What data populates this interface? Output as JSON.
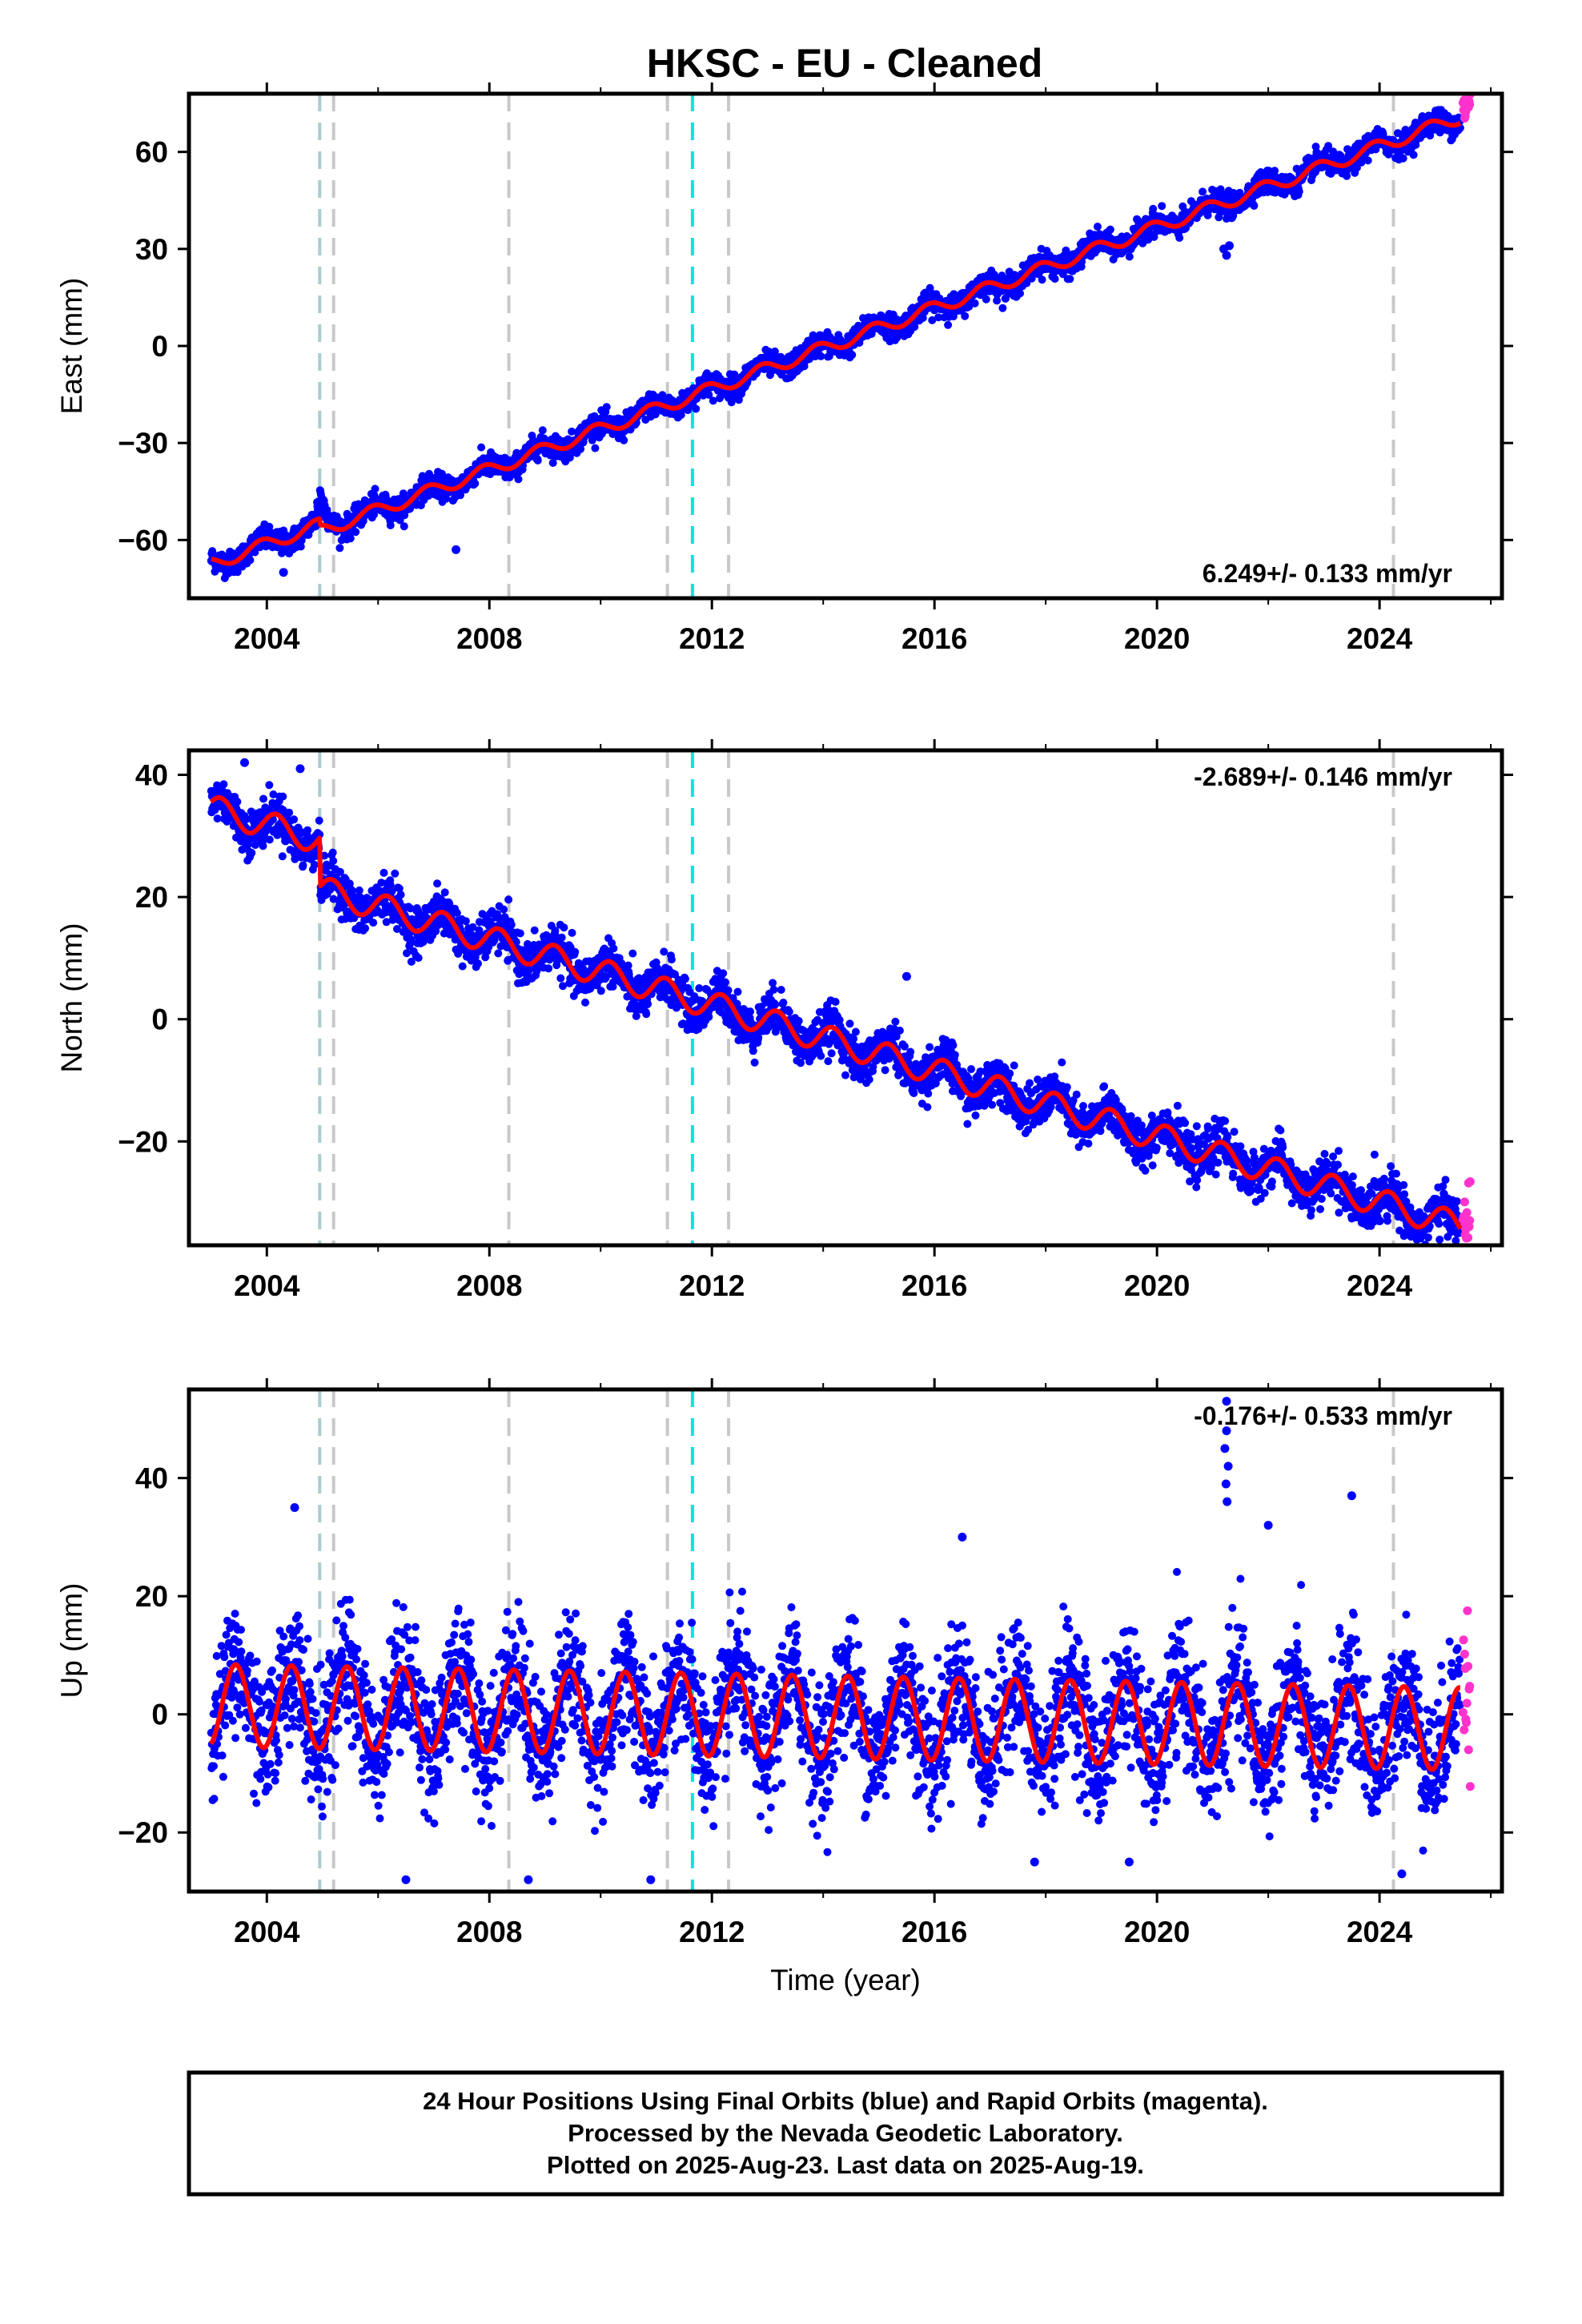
{
  "title": "HKSC  - EU - Cleaned",
  "x_axis_label": "Time (year)",
  "footer": {
    "line1": "24 Hour Positions Using Final Orbits (blue) and Rapid Orbits (magenta).",
    "line2": "Processed by the Nevada Geodetic Laboratory.",
    "line3": "Plotted on 2025-Aug-23. Last data on 2025-Aug-19."
  },
  "colors": {
    "final_orbits": "#0000ff",
    "rapid_orbits": "#ff33cc",
    "model_fit": "#ff0000",
    "event_line_gray": "#c8c8c8",
    "event_line_cyan": "#00e5e5",
    "event_line_teal": "#a9ccd0"
  },
  "event_lines": [
    {
      "year": 2004.95,
      "color": "teal"
    },
    {
      "year": 2005.2,
      "color": "gray"
    },
    {
      "year": 2008.35,
      "color": "gray"
    },
    {
      "year": 2011.2,
      "color": "gray"
    },
    {
      "year": 2011.65,
      "color": "cyan"
    },
    {
      "year": 2012.3,
      "color": "gray"
    },
    {
      "year": 2024.25,
      "color": "gray"
    }
  ],
  "chart_data": [
    {
      "type": "scatter",
      "id": "east",
      "ylabel": "East (mm)",
      "rate_label": "6.249+/- 0.133 mm/yr",
      "rate_position": "bottom-right",
      "xlim": [
        2002.6,
        2026.2
      ],
      "ylim": [
        -78,
        78
      ],
      "x_ticks": [
        2004,
        2008,
        2012,
        2016,
        2020,
        2024
      ],
      "y_ticks": [
        -60,
        -30,
        0,
        30,
        60
      ],
      "noise_mm": 1.8,
      "data_start": 2003.0,
      "data_end": 2025.45,
      "rapid_start": 2025.5,
      "rapid_end": 2025.63,
      "model": {
        "t0": 2003.0,
        "rate": 6.249,
        "offset": -67.5,
        "annual_amp": 2.0,
        "annual_phase": 2.2,
        "steps": [
          {
            "year": 2004.95,
            "size": -2.0
          }
        ]
      },
      "transients": [
        {
          "year": 2004.95,
          "amp": 11,
          "width": 0.12
        }
      ],
      "outliers": [
        {
          "x": 2021.2,
          "y": 30
        },
        {
          "x": 2021.25,
          "y": 28
        },
        {
          "x": 2021.3,
          "y": 31
        },
        {
          "x": 2004.3,
          "y": -70
        },
        {
          "x": 2007.4,
          "y": -63
        }
      ]
    },
    {
      "type": "scatter",
      "id": "north",
      "ylabel": "North (mm)",
      "rate_label": "-2.689+/- 0.146 mm/yr",
      "rate_position": "top-right",
      "xlim": [
        2002.6,
        2026.2
      ],
      "ylim": [
        -37,
        44
      ],
      "x_ticks": [
        2004,
        2008,
        2012,
        2016,
        2020,
        2024
      ],
      "y_ticks": [
        -20,
        0,
        20,
        40
      ],
      "noise_mm": 1.8,
      "data_start": 2003.0,
      "data_end": 2025.45,
      "rapid_start": 2025.5,
      "rapid_end": 2025.63,
      "model": {
        "t0": 2003.0,
        "rate": -2.689,
        "offset": 34.5,
        "annual_amp": 2.2,
        "annual_phase": 0.5,
        "steps": [
          {
            "year": 2004.95,
            "size": -8.0
          }
        ]
      },
      "transients": [],
      "outliers": [
        {
          "x": 2003.6,
          "y": 42
        },
        {
          "x": 2004.6,
          "y": 41
        },
        {
          "x": 2015.5,
          "y": 7
        },
        {
          "x": 2024.0,
          "y": -33
        },
        {
          "x": 2025.4,
          "y": -35
        }
      ]
    },
    {
      "type": "scatter",
      "id": "up",
      "ylabel": "Up (mm)",
      "rate_label": "-0.176+/- 0.533 mm/yr",
      "rate_position": "top-right",
      "xlim": [
        2002.6,
        2026.2
      ],
      "ylim": [
        -30,
        55
      ],
      "x_ticks": [
        2004,
        2008,
        2012,
        2016,
        2020,
        2024
      ],
      "y_ticks": [
        -20,
        0,
        20,
        40
      ],
      "noise_mm": 5.5,
      "data_start": 2003.0,
      "data_end": 2025.45,
      "rapid_start": 2025.5,
      "rapid_end": 2025.63,
      "model": {
        "t0": 2003.0,
        "rate": -0.176,
        "offset": 1.5,
        "annual_amp": 7.0,
        "annual_phase": -1.2,
        "steps": []
      },
      "transients": [],
      "outliers": [
        {
          "x": 2021.25,
          "y": 53
        },
        {
          "x": 2021.25,
          "y": 48
        },
        {
          "x": 2021.22,
          "y": 45
        },
        {
          "x": 2021.28,
          "y": 42
        },
        {
          "x": 2021.24,
          "y": 39
        },
        {
          "x": 2021.26,
          "y": 36
        },
        {
          "x": 2004.5,
          "y": 35
        },
        {
          "x": 2023.5,
          "y": 37
        },
        {
          "x": 2022.0,
          "y": 32
        },
        {
          "x": 2016.5,
          "y": 30
        },
        {
          "x": 2006.5,
          "y": -28
        },
        {
          "x": 2008.7,
          "y": -28
        },
        {
          "x": 2010.9,
          "y": -28
        },
        {
          "x": 2024.4,
          "y": -27
        },
        {
          "x": 2017.8,
          "y": -25
        },
        {
          "x": 2019.5,
          "y": -25
        }
      ]
    }
  ]
}
